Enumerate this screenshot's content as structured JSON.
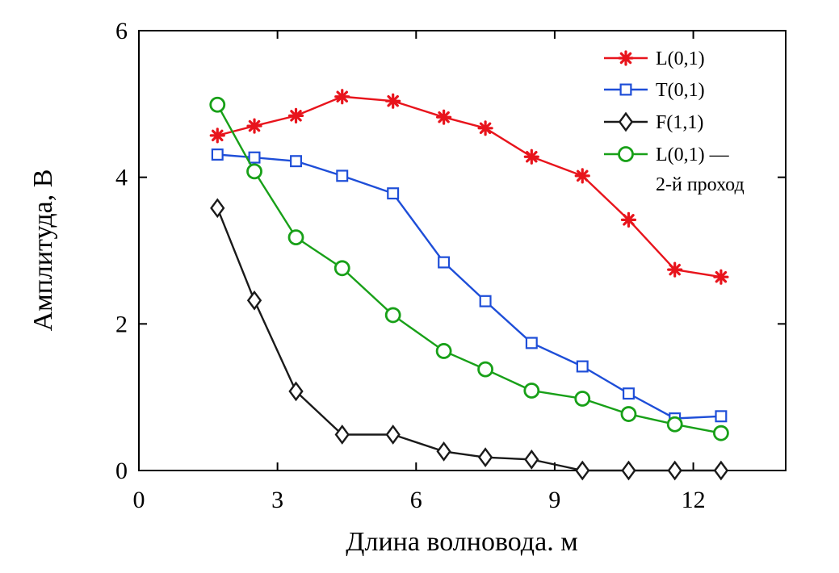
{
  "chart_data": {
    "type": "line",
    "xlabel": "Длина волновода. м",
    "ylabel": "Амплитуда, В",
    "xlim": [
      0,
      14
    ],
    "ylim": [
      0,
      6
    ],
    "xticks": [
      0,
      3,
      6,
      9,
      12
    ],
    "yticks": [
      0,
      2,
      4,
      6
    ],
    "xtick_labels": [
      "0",
      "3",
      "6",
      "9",
      "12"
    ],
    "ytick_labels": [
      "0",
      "2",
      "4",
      "6"
    ],
    "grid": false,
    "legend_position": "top-right",
    "series": [
      {
        "name": "L(0,1)",
        "color": "#e8141c",
        "marker": "asterisk",
        "x": [
          1.7,
          2.5,
          3.4,
          4.4,
          5.5,
          6.6,
          7.5,
          8.5,
          9.6,
          10.6,
          11.6,
          12.6
        ],
        "y": [
          4.57,
          4.7,
          4.84,
          5.1,
          5.04,
          4.82,
          4.67,
          4.28,
          4.02,
          3.42,
          2.74,
          2.64
        ]
      },
      {
        "name": "T(0,1)",
        "color": "#1e4ed8",
        "marker": "square",
        "x": [
          1.7,
          2.5,
          3.4,
          4.4,
          5.5,
          6.6,
          7.5,
          8.5,
          9.6,
          10.6,
          11.6,
          12.6
        ],
        "y": [
          4.31,
          4.27,
          4.22,
          4.02,
          3.78,
          2.84,
          2.31,
          1.74,
          1.42,
          1.05,
          0.71,
          0.74
        ]
      },
      {
        "name": "F(1,1)",
        "color": "#1a1a1a",
        "marker": "diamond",
        "x": [
          1.7,
          2.5,
          3.4,
          4.4,
          5.5,
          6.6,
          7.5,
          8.5,
          9.6,
          10.6,
          11.6,
          12.6
        ],
        "y": [
          3.58,
          2.32,
          1.08,
          0.49,
          0.49,
          0.26,
          0.18,
          0.15,
          0.0,
          0.0,
          0.0,
          0.0
        ]
      },
      {
        "name": "L(0,1) —",
        "name_line2": "2-й проход",
        "color": "#18a018",
        "marker": "circle",
        "x": [
          1.7,
          2.5,
          3.4,
          4.4,
          5.5,
          6.6,
          7.5,
          8.5,
          9.6,
          10.6,
          11.6,
          12.6
        ],
        "y": [
          4.99,
          4.08,
          3.18,
          2.76,
          2.12,
          1.63,
          1.38,
          1.09,
          0.98,
          0.77,
          0.63,
          0.51
        ]
      }
    ]
  }
}
